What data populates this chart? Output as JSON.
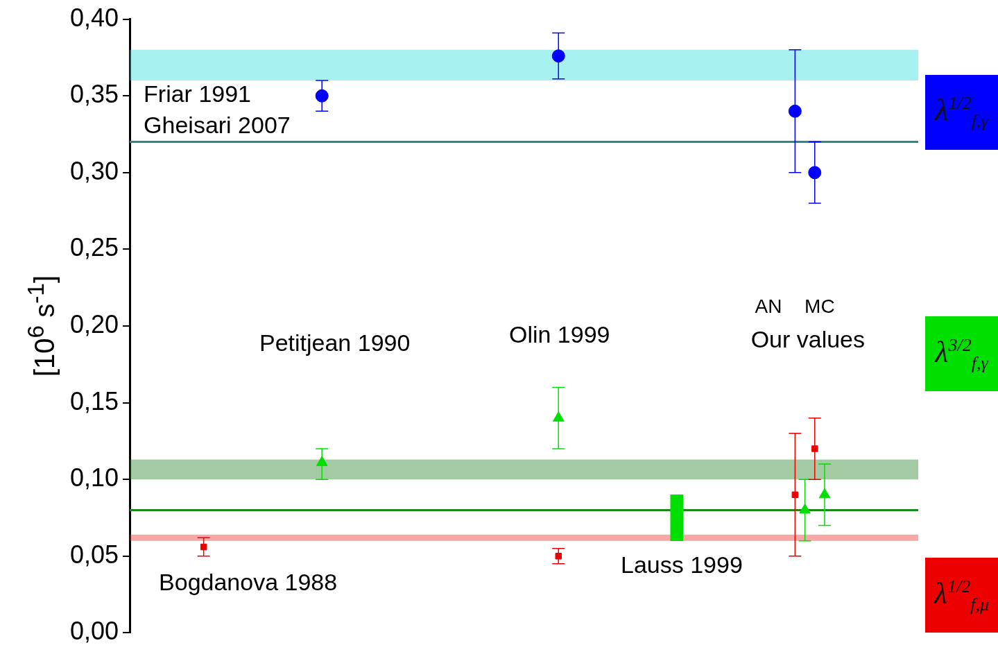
{
  "chart_data": {
    "type": "scatter",
    "ylabel": "[10$^{6}$ s$^{-1}$]",
    "categories": [
      null,
      null,
      null,
      null,
      null,
      null,
      null,
      null,
      null,
      null,
      null,
      null,
      null,
      null,
      null,
      null,
      null,
      null,
      null,
      null,
      null,
      null,
      null,
      null,
      null,
      null,
      null,
      null,
      null,
      null,
      null,
      null,
      null,
      null,
      null,
      null,
      null,
      null,
      null,
      null,
      null,
      null,
      null,
      null,
      null,
      null,
      null,
      null,
      null,
      null,
      null,
      null,
      null,
      null,
      null,
      null,
      null,
      null,
      null,
      null,
      null,
      null,
      null,
      null,
      null,
      null,
      null,
      null,
      null,
      null,
      null,
      null,
      null,
      null,
      null,
      null,
      null,
      null,
      null,
      null
    ],
    "tick_labels": "y",
    "legend": "right",
    "grid": false,
    "ylim": [
      0,
      0.4
    ],
    "yticks": [
      {
        "value": 0,
        "label": "0,00"
      },
      {
        "value": 0.05,
        "label": "0,05"
      },
      {
        "value": 0.1,
        "label": "0,10"
      },
      {
        "value": 0.15,
        "label": "0,15"
      },
      {
        "value": 0.2,
        "label": "0,20"
      },
      {
        "value": 0.25,
        "label": "0,25"
      },
      {
        "value": 0.3,
        "label": "0,30"
      },
      {
        "value": 0.35,
        "label": "0,35"
      },
      {
        "value": 0.4,
        "label": "0,40"
      }
    ],
    "series": [
      {
        "name": "λ$^{1/2}$$_{f,γ}$",
        "color": "#0000ff",
        "marker": "circle",
        "values": [
          null,
          null,
          null,
          null,
          null,
          null,
          null,
          null,
          null,
          null,
          null,
          null,
          null,
          null,
          null,
          null,
          null,
          null,
          null,
          0.35,
          null,
          null,
          null,
          null,
          null,
          null,
          null,
          null,
          null,
          null,
          null,
          null,
          null,
          null,
          null,
          null,
          null,
          null,
          null,
          null,
          null,
          null,
          null,
          0.376,
          null,
          null,
          null,
          null,
          null,
          null,
          null,
          null,
          null,
          null,
          null,
          null,
          null,
          null,
          null,
          null,
          null,
          null,
          null,
          null,
          null,
          null,
          null,
          0.34,
          null,
          0.3,
          null,
          null,
          null,
          null,
          null,
          null,
          null,
          null,
          null,
          null
        ],
        "errors": [
          null,
          null,
          null,
          null,
          null,
          null,
          null,
          null,
          null,
          null,
          null,
          null,
          null,
          null,
          null,
          null,
          null,
          null,
          null,
          [
            0.34,
            0.36
          ],
          null,
          null,
          null,
          null,
          null,
          null,
          null,
          null,
          null,
          null,
          null,
          null,
          null,
          null,
          null,
          null,
          null,
          null,
          null,
          null,
          null,
          null,
          null,
          [
            0.361,
            0.391
          ],
          null,
          null,
          null,
          null,
          null,
          null,
          null,
          null,
          null,
          null,
          null,
          null,
          null,
          null,
          null,
          null,
          null,
          null,
          null,
          null,
          null,
          null,
          null,
          [
            0.3,
            0.38
          ],
          null,
          [
            0.28,
            0.32
          ],
          null,
          null,
          null,
          null,
          null,
          null,
          null,
          null,
          null,
          null
        ]
      },
      {
        "name": "λ$^{3/2}$$_{f,γ}$",
        "color": "#00e000",
        "marker": "triangle",
        "values": [
          null,
          null,
          null,
          null,
          null,
          null,
          null,
          null,
          null,
          null,
          null,
          null,
          null,
          null,
          null,
          null,
          null,
          null,
          null,
          0.111,
          null,
          null,
          null,
          null,
          null,
          null,
          null,
          null,
          null,
          null,
          null,
          null,
          null,
          null,
          null,
          null,
          null,
          null,
          null,
          null,
          null,
          null,
          null,
          0.14,
          null,
          null,
          null,
          null,
          null,
          null,
          null,
          null,
          null,
          null,
          null,
          null,
          null,
          null,
          null,
          null,
          null,
          null,
          null,
          null,
          null,
          null,
          null,
          null,
          0.08,
          null,
          0.09,
          null,
          null,
          null,
          null,
          null,
          null,
          null,
          null,
          null
        ],
        "errors": [
          null,
          null,
          null,
          null,
          null,
          null,
          null,
          null,
          null,
          null,
          null,
          null,
          null,
          null,
          null,
          null,
          null,
          null,
          null,
          [
            0.1,
            0.12
          ],
          null,
          null,
          null,
          null,
          null,
          null,
          null,
          null,
          null,
          null,
          null,
          null,
          null,
          null,
          null,
          null,
          null,
          null,
          null,
          null,
          null,
          null,
          null,
          [
            0.12,
            0.16
          ],
          null,
          null,
          null,
          null,
          null,
          null,
          null,
          null,
          null,
          null,
          null,
          null,
          null,
          null,
          null,
          null,
          null,
          null,
          null,
          null,
          null,
          null,
          null,
          null,
          [
            0.06,
            0.1
          ],
          null,
          [
            0.07,
            0.11
          ],
          null,
          null,
          null,
          null,
          null,
          null,
          null,
          null,
          null
        ]
      },
      {
        "name": "λ$^{1/2}$$_{f,μ}$",
        "color": "#ee0000",
        "marker": "square",
        "values": [
          null,
          null,
          null,
          null,
          null,
          null,
          null,
          0.056,
          null,
          null,
          null,
          null,
          null,
          null,
          null,
          null,
          null,
          null,
          null,
          null,
          null,
          null,
          null,
          null,
          null,
          null,
          null,
          null,
          null,
          null,
          null,
          null,
          null,
          null,
          null,
          null,
          null,
          null,
          null,
          null,
          null,
          null,
          null,
          0.05,
          null,
          null,
          null,
          null,
          null,
          null,
          null,
          null,
          null,
          null,
          null,
          null,
          null,
          null,
          null,
          null,
          null,
          null,
          null,
          null,
          null,
          null,
          null,
          0.09,
          null,
          0.12,
          null,
          null,
          null,
          null,
          null,
          null,
          null,
          null,
          null,
          null
        ],
        "errors": [
          null,
          null,
          null,
          null,
          null,
          null,
          null,
          [
            0.05,
            0.062
          ],
          null,
          null,
          null,
          null,
          null,
          null,
          null,
          null,
          null,
          null,
          null,
          null,
          null,
          null,
          null,
          null,
          null,
          null,
          null,
          null,
          null,
          null,
          null,
          null,
          null,
          null,
          null,
          null,
          null,
          null,
          null,
          null,
          null,
          null,
          null,
          [
            0.045,
            0.055
          ],
          null,
          null,
          null,
          null,
          null,
          null,
          null,
          null,
          null,
          null,
          null,
          null,
          null,
          null,
          null,
          null,
          null,
          null,
          null,
          null,
          null,
          null,
          null,
          [
            0.05,
            0.13
          ],
          null,
          [
            0.1,
            0.14
          ],
          null,
          null,
          null,
          null,
          null,
          null,
          null,
          null,
          null,
          null
        ]
      },
      {
        "type": "bar",
        "color": "#00e000",
        "values": [
          null,
          null,
          null,
          null,
          null,
          null,
          null,
          null,
          null,
          null,
          null,
          null,
          null,
          null,
          null,
          null,
          null,
          null,
          null,
          null,
          null,
          null,
          null,
          null,
          null,
          null,
          null,
          null,
          null,
          null,
          null,
          null,
          null,
          null,
          null,
          null,
          null,
          null,
          null,
          null,
          null,
          null,
          null,
          null,
          null,
          null,
          null,
          null,
          null,
          null,
          null,
          null,
          null,
          null,
          null,
          0.03,
          null,
          null,
          null,
          null,
          null,
          null,
          null,
          null,
          null,
          null,
          null,
          null,
          null,
          null,
          null,
          null,
          null,
          null,
          null,
          null,
          null,
          null,
          null,
          null
        ],
        "base": [
          null,
          null,
          null,
          null,
          null,
          null,
          null,
          null,
          null,
          null,
          null,
          null,
          null,
          null,
          null,
          null,
          null,
          null,
          null,
          null,
          null,
          null,
          null,
          null,
          null,
          null,
          null,
          null,
          null,
          null,
          null,
          null,
          null,
          null,
          null,
          null,
          null,
          null,
          null,
          null,
          null,
          null,
          null,
          null,
          null,
          null,
          null,
          null,
          null,
          null,
          null,
          null,
          null,
          null,
          null,
          0.06,
          null,
          null,
          null,
          null,
          null,
          null,
          null,
          null,
          null,
          null,
          null,
          null,
          null,
          null,
          null,
          null,
          null,
          null,
          null,
          null,
          null,
          null,
          null,
          null
        ]
      }
    ],
    "bands": [
      {
        "axis": "y",
        "from": 0.36,
        "to": 0.38,
        "color": "#22dddd",
        "label": "Friar 1991"
      },
      {
        "axis": "y",
        "from": 0.1,
        "to": 0.113,
        "color": "#1a7a1a"
      },
      {
        "axis": "y",
        "from": 0.06,
        "to": 0.064,
        "color": "#ee2222"
      }
    ],
    "ref_lines": [
      {
        "axis": "y",
        "value": 0.32,
        "color": "#2a8a8a",
        "label": "Gheisari 2007"
      },
      {
        "axis": "y",
        "value": 0.08,
        "color": "#1a8a1a"
      }
    ],
    "annotations": [
      "Petitjean 1990",
      "Olin 1999",
      "Bogdanova 1988",
      "Lauss 1999",
      "AN",
      "MC",
      "Our values"
    ]
  }
}
